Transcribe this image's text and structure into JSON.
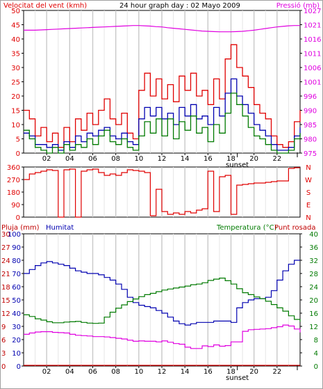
{
  "header": {
    "left_title": "Velocitat del vent (kmh)",
    "center_title": "24 hour graph day : 02 Mayo 2009",
    "right_title": "Pressió (mb)"
  },
  "colors": {
    "red": "#e00000",
    "blue": "#0000b0",
    "green": "#007a00",
    "magenta": "#e000e0",
    "grid": "#c8c8c8",
    "dark_red_label": "#c00000"
  },
  "x_ticks": [
    "02",
    "04",
    "06",
    "08",
    "10",
    "12",
    "14",
    "16",
    "18",
    "20",
    "22"
  ],
  "sunset_label": "sunset",
  "chart_data": [
    {
      "type": "line",
      "title": "Velocitat del vent (kmh)",
      "ylabel": "Velocitat del vent (kmh)",
      "y2label": "Pressió (mb)",
      "ylim": [
        0,
        50
      ],
      "y2lim": [
        975,
        1027
      ],
      "y_ticks": [
        0,
        5,
        10,
        15,
        20,
        25,
        30,
        35,
        40,
        45,
        50
      ],
      "y2_ticks": [
        975,
        980,
        985,
        990,
        996,
        1001,
        1006,
        1011,
        1016,
        1021,
        1027
      ],
      "x_hours": [
        0,
        0.5,
        1,
        1.5,
        2,
        2.5,
        3,
        3.5,
        4,
        4.5,
        5,
        5.5,
        6,
        6.5,
        7,
        7.5,
        8,
        8.5,
        9,
        9.5,
        10,
        10.5,
        11,
        11.5,
        12,
        12.5,
        13,
        13.5,
        14,
        14.5,
        15,
        15.5,
        16,
        16.5,
        17,
        17.5,
        18,
        18.5,
        19,
        19.5,
        20,
        20.5,
        21,
        21.5,
        22,
        22.5,
        23,
        23.5,
        24
      ],
      "series": [
        {
          "name": "gust",
          "axis": "left",
          "color": "#e00000",
          "values": [
            15,
            12,
            6,
            9,
            4,
            7,
            2,
            9,
            4,
            12,
            8,
            14,
            10,
            15,
            19,
            12,
            10,
            14,
            7,
            5,
            22,
            28,
            20,
            26,
            19,
            24,
            18,
            27,
            22,
            28,
            20,
            22,
            17,
            26,
            19,
            33,
            38,
            30,
            27,
            23,
            17,
            14,
            12,
            6,
            3,
            2,
            4,
            11,
            15
          ]
        },
        {
          "name": "average",
          "axis": "left",
          "color": "#0000b0",
          "values": [
            7,
            6,
            3,
            3,
            2,
            3,
            1,
            4,
            2,
            6,
            4,
            7,
            6,
            8,
            9,
            6,
            5,
            7,
            4,
            3,
            12,
            16,
            13,
            16,
            12,
            14,
            10,
            16,
            13,
            17,
            12,
            13,
            10,
            16,
            13,
            21,
            26,
            20,
            17,
            14,
            10,
            8,
            6,
            3,
            1,
            1,
            2,
            6,
            9
          ]
        },
        {
          "name": "direction-green",
          "axis": "left",
          "color": "#007a00",
          "values": [
            8,
            5,
            2,
            1,
            0,
            2,
            0,
            3,
            1,
            3,
            2,
            5,
            3,
            6,
            8,
            4,
            3,
            5,
            2,
            1,
            6,
            11,
            7,
            12,
            6,
            12,
            5,
            11,
            8,
            13,
            7,
            9,
            4,
            10,
            7,
            14,
            21,
            17,
            13,
            9,
            6,
            5,
            3,
            1,
            0,
            0,
            1,
            5,
            7
          ]
        },
        {
          "name": "pressure",
          "axis": "right",
          "color": "#e000e0",
          "values": [
            1019.8,
            1019.8,
            1019.8,
            1019.9,
            1020.0,
            1020.1,
            1020.2,
            1020.3,
            1020.4,
            1020.5,
            1020.6,
            1020.7,
            1020.8,
            1020.9,
            1021.0,
            1021.1,
            1021.2,
            1021.3,
            1021.4,
            1021.5,
            1021.5,
            1021.4,
            1021.3,
            1021.1,
            1021.0,
            1020.7,
            1020.5,
            1020.3,
            1020.1,
            1019.9,
            1019.7,
            1019.5,
            1019.4,
            1019.3,
            1019.2,
            1019.2,
            1019.2,
            1019.3,
            1019.4,
            1019.6,
            1019.8,
            1020.1,
            1020.4,
            1020.7,
            1021.0,
            1021.2,
            1021.4,
            1021.5,
            1021.5
          ]
        }
      ]
    },
    {
      "type": "line",
      "title": "",
      "ylabel": "",
      "ylim": [
        0,
        360
      ],
      "y_ticks": [
        0,
        90,
        180,
        270,
        360
      ],
      "y2_ticks": [
        "N",
        "E",
        "S",
        "W",
        "N"
      ],
      "x_hours": [
        0,
        0.5,
        1,
        1.5,
        2,
        2.5,
        3,
        3.5,
        4,
        4.5,
        5,
        5.5,
        6,
        6.5,
        7,
        7.5,
        8,
        8.5,
        9,
        9.5,
        10,
        10.5,
        11,
        11.5,
        12,
        12.5,
        13,
        13.5,
        14,
        14.5,
        15,
        15.5,
        16,
        16.5,
        17,
        17.5,
        18,
        18.5,
        19,
        19.5,
        20,
        20.5,
        21,
        21.5,
        22,
        22.5,
        23,
        23.5,
        24
      ],
      "series": [
        {
          "name": "wind-direction",
          "color": "#e00000",
          "values": [
            270,
            310,
            320,
            330,
            340,
            335,
            0,
            340,
            345,
            0,
            330,
            340,
            345,
            320,
            300,
            310,
            300,
            320,
            340,
            335,
            330,
            320,
            10,
            200,
            40,
            20,
            30,
            20,
            40,
            30,
            50,
            60,
            330,
            40,
            290,
            300,
            20,
            230,
            235,
            240,
            245,
            245,
            250,
            255,
            260,
            260,
            350,
            355,
            355
          ]
        }
      ]
    },
    {
      "type": "line",
      "title": "",
      "ylabel": "Pluja (mm)",
      "ylabel2": "Humitat",
      "y2label": "Temperatura (°C)Punt rosada",
      "ylim": [
        0,
        100
      ],
      "y2lim": [
        0,
        40
      ],
      "y_ticks_rain": [
        0,
        3,
        6,
        9,
        12,
        15,
        18,
        21,
        24,
        27,
        30
      ],
      "y_ticks_humidity": [
        0,
        10,
        20,
        30,
        40,
        50,
        60,
        70,
        80,
        90,
        100
      ],
      "y2_ticks": [
        0,
        4,
        8,
        12,
        16,
        20,
        24,
        28,
        32,
        36,
        40
      ],
      "x_hours": [
        0,
        0.5,
        1,
        1.5,
        2,
        2.5,
        3,
        3.5,
        4,
        4.5,
        5,
        5.5,
        6,
        6.5,
        7,
        7.5,
        8,
        8.5,
        9,
        9.5,
        10,
        10.5,
        11,
        11.5,
        12,
        12.5,
        13,
        13.5,
        14,
        14.5,
        15,
        15.5,
        16,
        16.5,
        17,
        17.5,
        18,
        18.5,
        19,
        19.5,
        20,
        20.5,
        21,
        21.5,
        22,
        22.5,
        23,
        23.5,
        24
      ],
      "series": [
        {
          "name": "Humitat",
          "axis": "left",
          "color": "#0000b0",
          "values": [
            70,
            73,
            76,
            78,
            79,
            78,
            77,
            76,
            74,
            72,
            71,
            70,
            70,
            69,
            67,
            65,
            62,
            58,
            52,
            48,
            46,
            45,
            44,
            42,
            40,
            37,
            34,
            32,
            31,
            32,
            33,
            33,
            33,
            34,
            34,
            34,
            33,
            44,
            48,
            50,
            51,
            51,
            52,
            57,
            65,
            72,
            77,
            80,
            80
          ]
        },
        {
          "name": "Temperatura (°C)",
          "axis": "right",
          "color": "#007a00",
          "values": [
            15.5,
            15.0,
            14.3,
            13.9,
            13.4,
            13.1,
            13.1,
            13.3,
            13.4,
            13.5,
            13.2,
            13.0,
            12.9,
            13.0,
            14.8,
            16.3,
            17.5,
            18.5,
            19.5,
            20.3,
            21.0,
            21.6,
            22.0,
            22.5,
            23.0,
            23.3,
            23.6,
            23.9,
            24.2,
            24.6,
            24.8,
            25.2,
            25.9,
            26.3,
            26.6,
            25.8,
            24.8,
            23.4,
            22.2,
            21.6,
            20.9,
            20.4,
            19.6,
            18.6,
            17.6,
            16.6,
            15.2,
            14.1,
            13.4
          ]
        },
        {
          "name": "Punt rosada",
          "axis": "right",
          "color": "#e000e0",
          "values": [
            9.6,
            10.0,
            10.3,
            10.4,
            10.4,
            10.2,
            10.1,
            10.0,
            9.6,
            9.3,
            9.2,
            9.1,
            8.9,
            8.9,
            8.8,
            8.6,
            8.4,
            8.2,
            7.8,
            7.5,
            7.6,
            7.5,
            7.5,
            7.3,
            7.6,
            7.2,
            6.8,
            6.6,
            5.7,
            5.3,
            5.3,
            6.1,
            5.9,
            6.4,
            6.0,
            6.2,
            7.3,
            7.3,
            10.5,
            11.0,
            11.1,
            11.2,
            11.3,
            11.6,
            11.9,
            12.4,
            12.1,
            11.2,
            10.2
          ]
        },
        {
          "name": "Pluja (mm)",
          "axis": "left",
          "color": "#e00000",
          "values": [
            0,
            0,
            0,
            0,
            0,
            0,
            0,
            0,
            0,
            0,
            0,
            0,
            0,
            0,
            0,
            0,
            0,
            0,
            0,
            0,
            0,
            0,
            0,
            0,
            0,
            0,
            0,
            0,
            0,
            0,
            0,
            0,
            0,
            0,
            0,
            0,
            0,
            0,
            0,
            0,
            0,
            0,
            0,
            0,
            0,
            0,
            0,
            0,
            0
          ]
        }
      ]
    }
  ],
  "panel3_headers": {
    "rain": "Pluja (mm)",
    "humidity": "Humitat",
    "temp": "Temperatura (°C)",
    "dew": "Punt rosada"
  }
}
